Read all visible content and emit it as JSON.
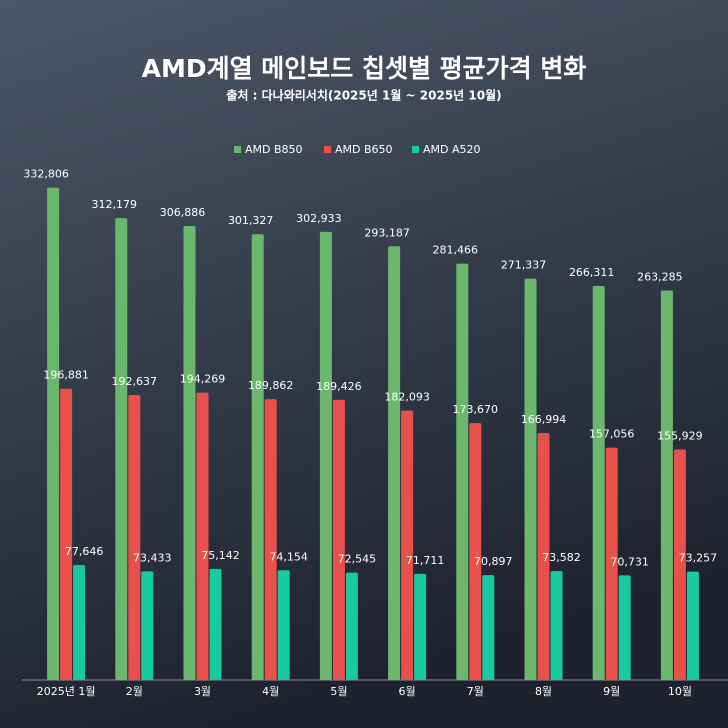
{
  "chart_data": {
    "type": "bar",
    "title": "AMD계열 메인보드 칩셋별 평균가격 변화",
    "subtitle": "출처 : 다나와리서치(2025년 1월 ~ 2025년 10월)",
    "categories": [
      "2025년 1월",
      "2월",
      "3월",
      "4월",
      "5월",
      "6월",
      "7월",
      "8월",
      "9월",
      "10월"
    ],
    "series": [
      {
        "name": "AMD B850",
        "color": "#6cb76e",
        "values": [
          332806,
          312179,
          306886,
          301327,
          302933,
          293187,
          281466,
          271337,
          266311,
          263285
        ],
        "value_labels": [
          "332,806",
          "312,179",
          "306,886",
          "301,327",
          "302,933",
          "293,187",
          "281,466",
          "271,337",
          "266,311",
          "263,285"
        ]
      },
      {
        "name": "AMD B650",
        "color": "#e8514b",
        "values": [
          196881,
          192637,
          194269,
          189862,
          189426,
          182093,
          173670,
          166994,
          157056,
          155929
        ],
        "value_labels": [
          "196,881",
          "192,637",
          "194,269",
          "189,862",
          "189,426",
          "182,093",
          "173,670",
          "166,994",
          "157,056",
          "155,929"
        ]
      },
      {
        "name": "AMD A520",
        "color": "#19c9a0",
        "values": [
          77646,
          73433,
          75142,
          74154,
          72545,
          71711,
          70897,
          73582,
          70731,
          73257
        ],
        "value_labels": [
          "77,646",
          "73,433",
          "75,142",
          "74,154",
          "72,545",
          "71,711",
          "70,897",
          "73,582",
          "70,731",
          "73,257"
        ]
      }
    ],
    "ylim": [
      0,
      340000
    ]
  }
}
